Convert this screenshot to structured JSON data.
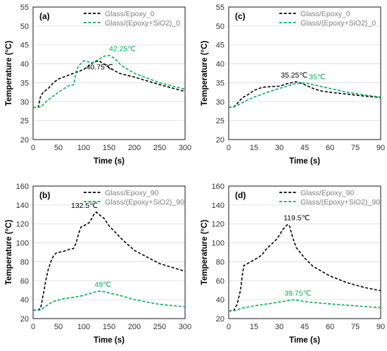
{
  "chart_data": [
    {
      "type": "line",
      "panel_label": "(a)",
      "xlabel": "Time (s)",
      "ylabel": "Temperature (°C)",
      "xlim": [
        0,
        300
      ],
      "ylim": [
        20,
        55
      ],
      "xticks": [
        0,
        50,
        100,
        150,
        200,
        250,
        300
      ],
      "yticks": [
        20,
        25,
        30,
        35,
        40,
        45,
        50,
        55
      ],
      "grid": "horizontal",
      "legend": "top-right",
      "series": [
        {
          "name": "Glass/Epoxy_0",
          "color": "#000000",
          "dash": "dashed",
          "x": [
            0,
            10,
            15,
            20,
            30,
            40,
            50,
            60,
            70,
            80,
            90,
            100,
            110,
            120,
            130,
            140,
            150,
            170,
            200,
            250,
            300
          ],
          "y": [
            28.5,
            28.5,
            31.5,
            32.5,
            33.5,
            35,
            36,
            36.5,
            37,
            37.5,
            38,
            38.5,
            39.5,
            40.5,
            40.75,
            40,
            39,
            37.5,
            36.5,
            34.5,
            32.7
          ]
        },
        {
          "name": "Glass/(Epoxy+SiO2)_0",
          "color": "#00b050",
          "dash": "dashed",
          "x": [
            0,
            15,
            30,
            50,
            70,
            80,
            85,
            90,
            100,
            110,
            115,
            120,
            130,
            140,
            150,
            160,
            175,
            200,
            250,
            300
          ],
          "y": [
            28.5,
            28.6,
            30.5,
            32.5,
            34.2,
            34.5,
            38,
            39.5,
            40.8,
            40.5,
            40.2,
            40.5,
            41.2,
            42,
            42.25,
            41.5,
            39.5,
            37.5,
            35,
            33.3
          ]
        }
      ],
      "annotations": [
        {
          "text": "42.25℃",
          "x": 150,
          "y": 42.25,
          "color": "#00b050"
        },
        {
          "text": "40.75℃",
          "x": 130,
          "y": 40.75,
          "color": "#000000"
        }
      ]
    },
    {
      "type": "line",
      "panel_label": "(c)",
      "xlabel": "Time (s)",
      "ylabel": "Temperature (°C)",
      "xlim": [
        0,
        90
      ],
      "ylim": [
        20,
        55
      ],
      "xticks": [
        0,
        15,
        30,
        45,
        60,
        75,
        90
      ],
      "yticks": [
        20,
        25,
        30,
        35,
        40,
        45,
        50,
        55
      ],
      "grid": "horizontal",
      "legend": "top-right",
      "series": [
        {
          "name": "Glass/Epoxy_0",
          "color": "#000000",
          "dash": "dashed",
          "x": [
            0,
            3,
            5,
            8,
            12,
            15,
            20,
            25,
            30,
            35,
            40,
            42,
            45,
            50,
            55,
            60,
            70,
            80,
            90
          ],
          "y": [
            28.5,
            28.6,
            29.5,
            31,
            32,
            33,
            33.8,
            34,
            34.1,
            34.8,
            35.25,
            35,
            34.5,
            33.5,
            32.8,
            32.5,
            32,
            31.5,
            31.1
          ]
        },
        {
          "name": "Glass/(Epoxy+SiO2)_0",
          "color": "#00b050",
          "dash": "dashed",
          "x": [
            0,
            3,
            6,
            10,
            15,
            20,
            25,
            30,
            35,
            40,
            45,
            50,
            55,
            60,
            70,
            80,
            90
          ],
          "y": [
            28.5,
            28.6,
            29.2,
            30.2,
            31.2,
            32,
            32.8,
            33.5,
            34.2,
            34.8,
            35,
            34.5,
            34,
            33.5,
            32.5,
            31.8,
            31.2
          ]
        }
      ],
      "annotations": [
        {
          "text": "35.25℃",
          "x": 40,
          "y": 35.25,
          "color": "#000000"
        },
        {
          "text": "35℃",
          "x": 45,
          "y": 35,
          "color": "#00b050"
        }
      ]
    },
    {
      "type": "line",
      "panel_label": "(b)",
      "xlabel": "Time (s)",
      "ylabel": "Temperature (°C)",
      "xlim": [
        0,
        300
      ],
      "ylim": [
        20,
        160
      ],
      "xticks": [
        0,
        50,
        100,
        150,
        200,
        250,
        300
      ],
      "yticks": [
        20,
        40,
        60,
        80,
        100,
        120,
        140,
        160
      ],
      "grid": "horizontal",
      "legend": "top-right",
      "series": [
        {
          "name": "Glass/Epoxy_90",
          "color": "#000000",
          "dash": "dashed",
          "x": [
            0,
            10,
            15,
            20,
            25,
            30,
            35,
            40,
            45,
            50,
            60,
            70,
            80,
            85,
            90,
            95,
            100,
            110,
            115,
            120,
            125,
            130,
            140,
            150,
            175,
            200,
            250,
            300
          ],
          "y": [
            29,
            29,
            31,
            45,
            60,
            72,
            80,
            86,
            89,
            90,
            91,
            93,
            94,
            100,
            110,
            117,
            118,
            121,
            125,
            130,
            132.5,
            130,
            126,
            118,
            104,
            92,
            78,
            70
          ]
        },
        {
          "name": "Glass/(Epoxy+SiO2)_90",
          "color": "#00b050",
          "dash": "dashed",
          "x": [
            0,
            15,
            25,
            40,
            60,
            80,
            100,
            115,
            125,
            130,
            140,
            150,
            175,
            200,
            250,
            300
          ],
          "y": [
            29,
            29,
            33,
            38,
            41,
            42.5,
            44.5,
            47,
            48.5,
            49,
            48.5,
            47,
            44,
            40,
            35,
            32.5
          ]
        }
      ],
      "annotations": [
        {
          "text": "132.5℃",
          "x": 125,
          "y": 132.5,
          "color": "#000000"
        },
        {
          "text": "49℃",
          "x": 130,
          "y": 49,
          "color": "#00b050"
        }
      ]
    },
    {
      "type": "line",
      "panel_label": "(d)",
      "xlabel": "Time (s)",
      "ylabel": "Temperature (°C)",
      "xlim": [
        0,
        90
      ],
      "ylim": [
        20,
        160
      ],
      "xticks": [
        0,
        15,
        30,
        45,
        60,
        75,
        90
      ],
      "yticks": [
        20,
        40,
        60,
        80,
        100,
        120,
        140,
        160
      ],
      "grid": "horizontal",
      "legend": "top-right",
      "series": [
        {
          "name": "Glass/Epoxy_90",
          "color": "#000000",
          "dash": "dashed",
          "x": [
            0,
            3,
            5,
            7,
            8,
            9,
            12,
            15,
            18,
            20,
            22,
            25,
            28,
            30,
            32,
            34,
            35,
            36,
            38,
            40,
            45,
            50,
            60,
            70,
            80,
            90
          ],
          "y": [
            28,
            28.5,
            35,
            50,
            65,
            76,
            79,
            82,
            85,
            88,
            93,
            98,
            103,
            108,
            114,
            118,
            119.5,
            118,
            105,
            95,
            84,
            75,
            65,
            58,
            53,
            49.5
          ]
        },
        {
          "name": "Glass/(Epoxy+SiO2)_90",
          "color": "#00b050",
          "dash": "dashed",
          "x": [
            0,
            4,
            8,
            15,
            25,
            30,
            35,
            38,
            40,
            45,
            50,
            60,
            75,
            90
          ],
          "y": [
            28,
            28.5,
            31,
            33.5,
            36,
            37.5,
            39,
            39.75,
            39.5,
            38,
            37,
            35.5,
            33.5,
            31.5
          ]
        }
      ],
      "annotations": [
        {
          "text": "119.5℃",
          "x": 35,
          "y": 119.5,
          "color": "#000000"
        },
        {
          "text": "39.75℃",
          "x": 38,
          "y": 39.75,
          "color": "#00b050"
        }
      ]
    }
  ]
}
